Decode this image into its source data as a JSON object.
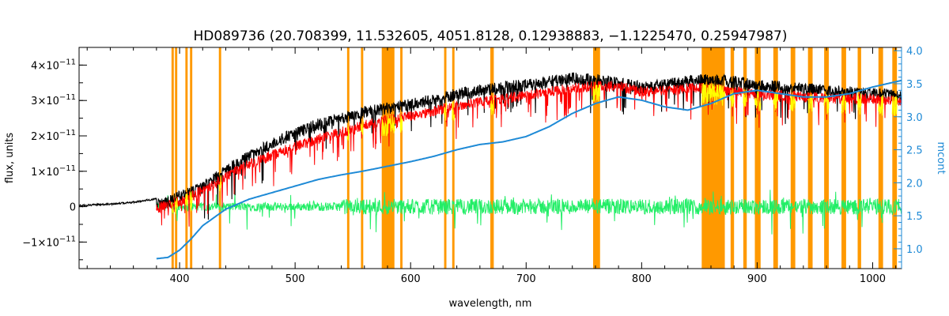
{
  "chart_data": {
    "type": "line",
    "title": "HD089736    (20.708399, 11.532605, 4051.8128, 0.12938883, −1.1225470, 0.25947987)",
    "xlabel": "wavelength, nm",
    "ylabel": "flux, units",
    "ylabel_right": "mcont",
    "xlim": [
      313,
      1025
    ],
    "ylim": [
      -1.75e-11,
      4.5e-11
    ],
    "ylim_right": [
      0.7,
      4.05
    ],
    "x_ticks": [
      400,
      500,
      600,
      700,
      800,
      900,
      1000
    ],
    "x_tick_labels": [
      "400",
      "500",
      "600",
      "700",
      "800",
      "900",
      "1000"
    ],
    "y_ticks": [
      -1e-11,
      0,
      1e-11,
      2e-11,
      3e-11,
      4e-11
    ],
    "y_tick_labels": [
      {
        "mant": "−1×10",
        "exp": "−11"
      },
      {
        "mant": "0",
        "exp": ""
      },
      {
        "mant": "1×10",
        "exp": "−11"
      },
      {
        "mant": "2×10",
        "exp": "−11"
      },
      {
        "mant": "3×10",
        "exp": "−11"
      },
      {
        "mant": "4×10",
        "exp": "−11"
      }
    ],
    "y_right_ticks": [
      1.0,
      1.5,
      2.0,
      2.5,
      3.0,
      3.5,
      4.0
    ],
    "y_right_tick_labels": [
      "1.0",
      "1.5",
      "2.0",
      "2.5",
      "3.0",
      "3.5",
      "4.0"
    ],
    "grid": false,
    "colors": {
      "observed": "#000000",
      "model": "#ff0000",
      "residual": "#22ee66",
      "continuum": "#1e8ad6",
      "masked": "#ffff00",
      "mask_band": "#ff9900"
    },
    "series": [
      {
        "key": "observed",
        "x": [
          313,
          340,
          360,
          380,
          390,
          400,
          420,
          440,
          460,
          480,
          500,
          520,
          540,
          560,
          580,
          600,
          620,
          640,
          660,
          680,
          700,
          720,
          740,
          760,
          780,
          800,
          820,
          840,
          860,
          880,
          900,
          920,
          940,
          960,
          980,
          1000,
          1025
        ],
        "y": [
          5e-13,
          1e-12,
          1.5e-12,
          2.5e-12,
          3e-12,
          4.5e-12,
          7e-12,
          1.2e-11,
          1.6e-11,
          1.95e-11,
          2.25e-11,
          2.5e-11,
          2.65e-11,
          2.85e-11,
          2.95e-11,
          3.05e-11,
          3.2e-11,
          3.35e-11,
          3.45e-11,
          3.55e-11,
          3.6e-11,
          3.7e-11,
          3.8e-11,
          3.75e-11,
          3.65e-11,
          3.55e-11,
          3.6e-11,
          3.72e-11,
          3.75e-11,
          3.7e-11,
          3.6e-11,
          3.55e-11,
          3.5e-11,
          3.45e-11,
          3.4e-11,
          3.35e-11,
          3.3e-11
        ]
      },
      {
        "key": "model",
        "x": [
          380,
          400,
          420,
          440,
          460,
          480,
          500,
          520,
          540,
          560,
          580,
          600,
          620,
          640,
          660,
          680,
          700,
          720,
          740,
          760,
          780,
          800,
          820,
          840,
          860,
          880,
          900,
          920,
          940,
          960,
          980,
          1000,
          1025
        ],
        "y": [
          1e-12,
          3e-12,
          6e-12,
          1e-11,
          1.35e-11,
          1.6e-11,
          1.85e-11,
          2.05e-11,
          2.25e-11,
          2.45e-11,
          2.6e-11,
          2.7e-11,
          2.85e-11,
          3e-11,
          3.1e-11,
          3.2e-11,
          3.3e-11,
          3.4e-11,
          3.5e-11,
          3.55e-11,
          3.55e-11,
          3.4e-11,
          3.4e-11,
          3.5e-11,
          3.5e-11,
          3.4e-11,
          3.3e-11,
          3.3e-11,
          3.25e-11,
          3.2e-11,
          3.2e-11,
          3.2e-11,
          3.1e-11
        ]
      },
      {
        "key": "continuum",
        "axis": "right",
        "x": [
          380,
          390,
          400,
          410,
          420,
          440,
          460,
          480,
          500,
          520,
          540,
          560,
          580,
          600,
          620,
          640,
          660,
          680,
          700,
          720,
          740,
          760,
          780,
          800,
          820,
          840,
          860,
          880,
          900,
          920,
          940,
          960,
          980,
          1000,
          1025
        ],
        "y": [
          0.85,
          0.87,
          0.98,
          1.15,
          1.35,
          1.6,
          1.75,
          1.85,
          1.95,
          2.05,
          2.12,
          2.18,
          2.25,
          2.32,
          2.4,
          2.5,
          2.58,
          2.62,
          2.7,
          2.85,
          3.05,
          3.2,
          3.3,
          3.25,
          3.15,
          3.1,
          3.2,
          3.35,
          3.4,
          3.35,
          3.3,
          3.3,
          3.35,
          3.45,
          3.55
        ]
      }
    ],
    "residual_range": [
      380,
      1025
    ],
    "mask_bands": [
      [
        393,
        395
      ],
      [
        396,
        398
      ],
      [
        405,
        407
      ],
      [
        409,
        411
      ],
      [
        434,
        436
      ],
      [
        545,
        547
      ],
      [
        557,
        559
      ],
      [
        575,
        586
      ],
      [
        591,
        593
      ],
      [
        629,
        631
      ],
      [
        636,
        638
      ],
      [
        669,
        672
      ],
      [
        758,
        764
      ],
      [
        852,
        872
      ],
      [
        877,
        880
      ],
      [
        888,
        891
      ],
      [
        898,
        903
      ],
      [
        914,
        918
      ],
      [
        929,
        933
      ],
      [
        944,
        948
      ],
      [
        958,
        962
      ],
      [
        973,
        977
      ],
      [
        987,
        990
      ],
      [
        1005,
        1009
      ],
      [
        1017,
        1021
      ]
    ]
  }
}
